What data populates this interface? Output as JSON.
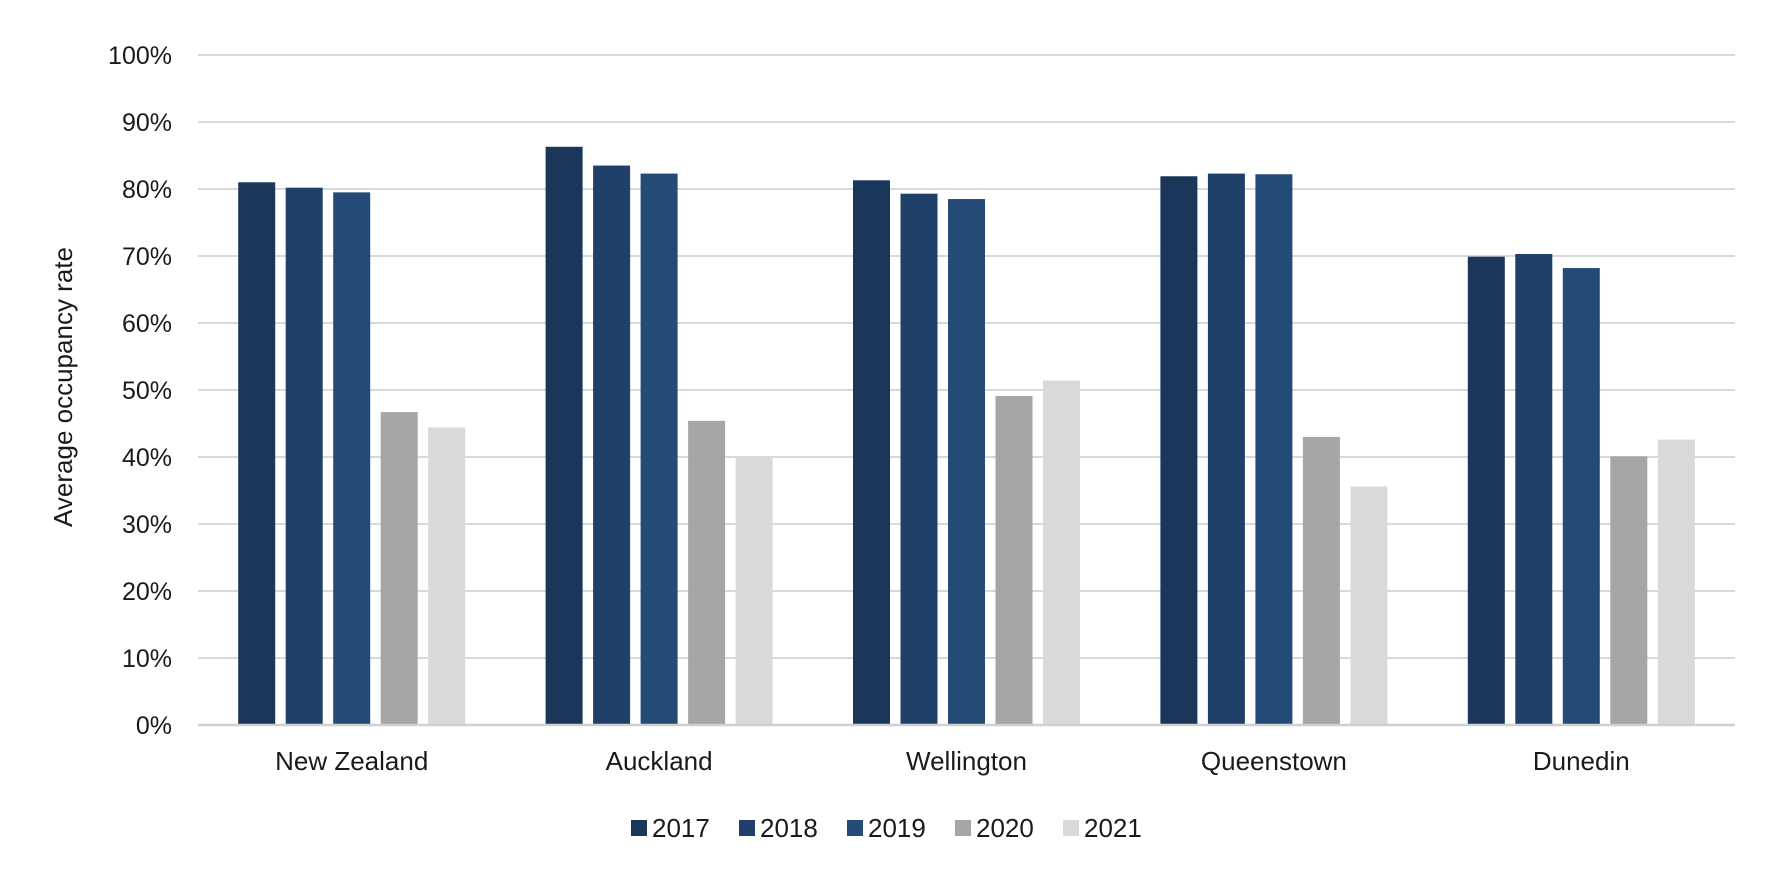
{
  "chart_data": {
    "type": "bar",
    "title": "",
    "xlabel": "",
    "ylabel": "Average occupancy rate",
    "ylim": [
      0,
      100
    ],
    "y_ticks": [
      "0%",
      "10%",
      "20%",
      "30%",
      "40%",
      "50%",
      "60%",
      "70%",
      "80%",
      "90%",
      "100%"
    ],
    "y_unit": "%",
    "grid": true,
    "legend_position": "bottom",
    "categories": [
      "New Zealand",
      "Auckland",
      "Wellington",
      "Queenstown",
      "Dunedin"
    ],
    "series": [
      {
        "name": "2017",
        "color": "#1a365a",
        "values": [
          81.0,
          86.3,
          81.3,
          81.9,
          69.9
        ]
      },
      {
        "name": "2018",
        "color": "#1f4068",
        "values": [
          80.2,
          83.5,
          79.3,
          82.3,
          70.3
        ]
      },
      {
        "name": "2019",
        "color": "#234b75",
        "values": [
          79.5,
          82.3,
          78.5,
          82.2,
          68.2
        ]
      },
      {
        "name": "2020",
        "color": "#a6a6a6",
        "values": [
          46.7,
          45.4,
          49.1,
          43.0,
          40.1
        ]
      },
      {
        "name": "2021",
        "color": "#d9d9d9",
        "values": [
          44.4,
          40.1,
          51.4,
          35.6,
          42.6
        ]
      }
    ]
  }
}
